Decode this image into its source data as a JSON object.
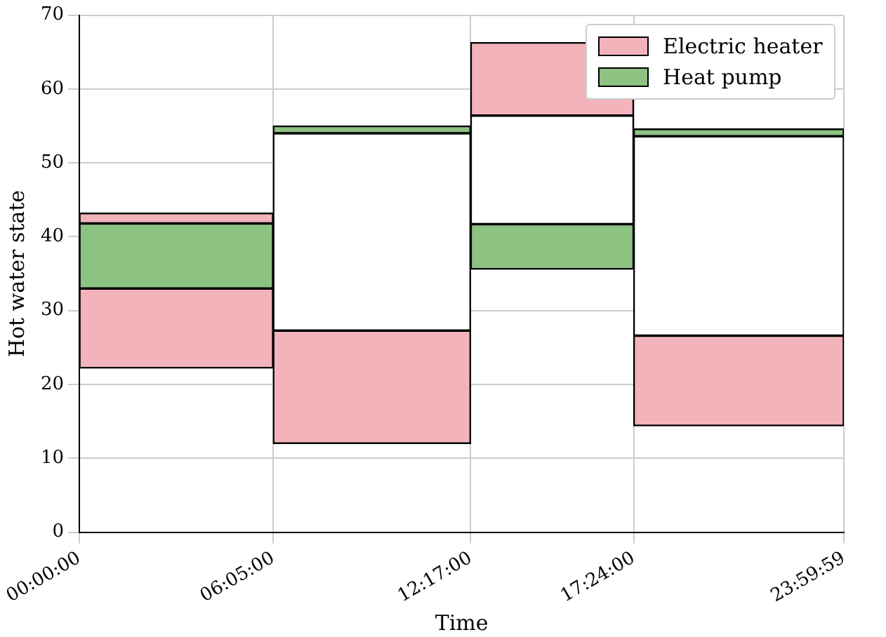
{
  "chart_data": {
    "type": "bar",
    "xlabel": "Time",
    "ylabel": "Hot water state",
    "x": [
      3.04165,
      9.1833,
      14.84165,
      20.69985
    ],
    "xlim": [
      0,
      23.9997
    ],
    "xticks": [
      {
        "value": 0,
        "label": "00:00:00"
      },
      {
        "value": 6.0833,
        "label": "06:05:00"
      },
      {
        "value": 12.2833,
        "label": "12:17:00"
      },
      {
        "value": 17.4,
        "label": "17:24:00"
      },
      {
        "value": 23.9997,
        "label": "23:59:59"
      }
    ],
    "ylim": [
      0,
      70
    ],
    "yticks": [
      0,
      10,
      20,
      30,
      40,
      50,
      60,
      70
    ],
    "series": [
      {
        "name": "Electric heater",
        "color": "#f2b3bb",
        "base": [
          22.2,
          12.0,
          56.4,
          14.4
        ],
        "values": [
          10.8,
          15.3,
          9.9,
          12.2
        ]
      },
      {
        "name": "Heat pump",
        "color": "#8cc282",
        "base": [
          33.0,
          54.0,
          35.6,
          53.6
        ],
        "values": [
          8.8,
          1.0,
          6.1,
          1.0
        ]
      },
      {
        "color": "#ffffff",
        "base": [
          null,
          27.3,
          41.7,
          26.6
        ],
        "values": [
          null,
          26.7,
          14.7,
          27.0
        ]
      },
      {
        "color": "#f2b3bb",
        "base": [
          41.8,
          null,
          null,
          null
        ],
        "values": [
          1.4,
          null,
          null,
          null
        ]
      }
    ],
    "grid": true,
    "legend": "top right"
  }
}
